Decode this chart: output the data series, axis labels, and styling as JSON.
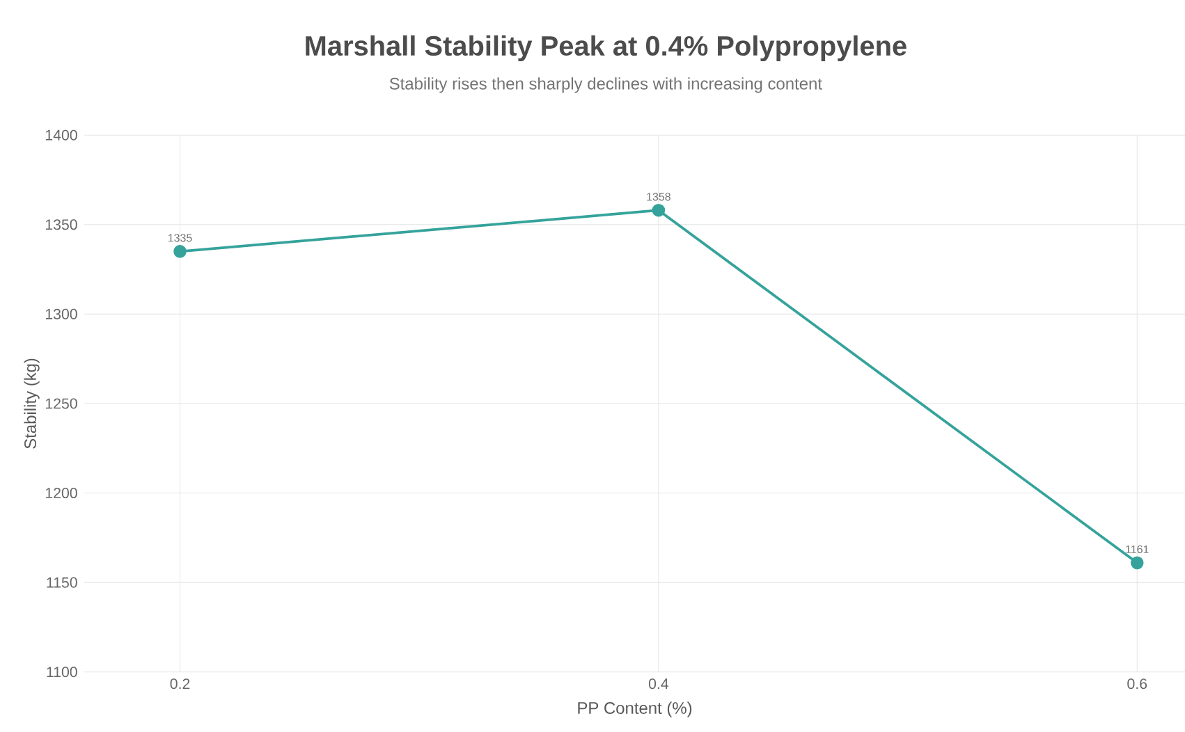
{
  "chart_data": {
    "type": "line",
    "title": "Marshall Stability Peak at 0.4% Polypropylene",
    "subtitle": "Stability rises then sharply declines with increasing content",
    "xlabel": "PP Content (%)",
    "ylabel": "Stability (kg)",
    "x": [
      0.2,
      0.4,
      0.6
    ],
    "series": [
      {
        "color": "#35a39b",
        "values": [
          1335,
          1358,
          1161
        ]
      }
    ],
    "xlim": [
      0.16,
      0.62
    ],
    "xticks": [
      0.2,
      0.4,
      0.6
    ],
    "ylim": [
      1100,
      1400
    ],
    "yticks": [
      1100,
      1150,
      1200,
      1250,
      1300,
      1350,
      1400
    ],
    "grid": true,
    "marker": "circle",
    "line_style": "solid",
    "data_labels": true
  }
}
